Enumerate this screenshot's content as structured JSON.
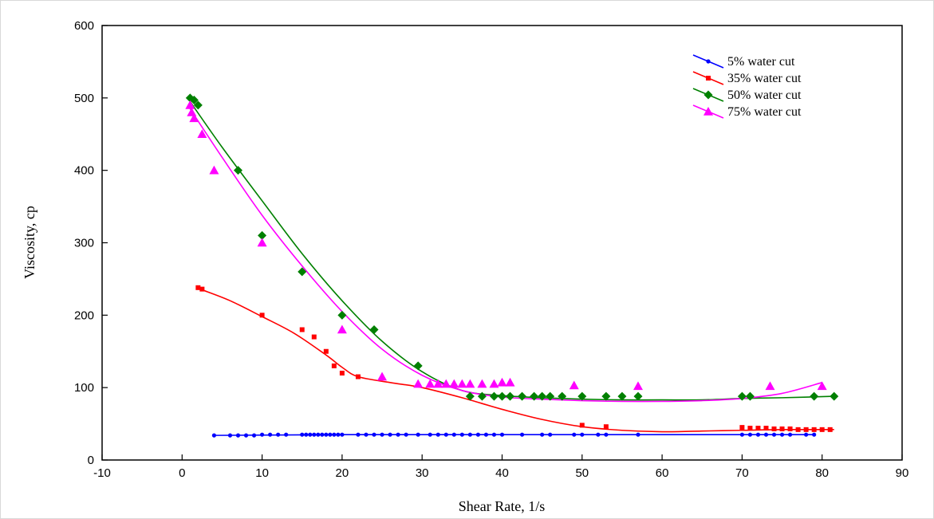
{
  "chart_data": {
    "type": "scatter",
    "xlabel": "Shear Rate, 1/s",
    "ylabel": "Viscosity, cp",
    "xlim": [
      -10,
      90
    ],
    "ylim": [
      0,
      600
    ],
    "x_ticks": [
      "-10",
      "0",
      "10",
      "20",
      "30",
      "40",
      "50",
      "60",
      "70",
      "80",
      "90"
    ],
    "y_ticks": [
      "0",
      "100",
      "200",
      "300",
      "400",
      "500",
      "600"
    ],
    "grid": false,
    "legend_position": "top-right",
    "series": [
      {
        "name": "5% water cut",
        "color": "#0000ff",
        "marker": "circle",
        "points": [
          [
            4,
            34
          ],
          [
            6,
            34
          ],
          [
            7,
            34
          ],
          [
            8,
            34
          ],
          [
            9,
            34
          ],
          [
            10,
            35
          ],
          [
            11,
            35
          ],
          [
            12,
            35
          ],
          [
            13,
            35
          ],
          [
            15,
            35
          ],
          [
            15.5,
            35
          ],
          [
            16,
            35
          ],
          [
            16.5,
            35
          ],
          [
            17,
            35
          ],
          [
            17.5,
            35
          ],
          [
            18,
            35
          ],
          [
            18.5,
            35
          ],
          [
            19,
            35
          ],
          [
            19.5,
            35
          ],
          [
            20,
            35
          ],
          [
            22,
            35
          ],
          [
            23,
            35
          ],
          [
            24,
            35
          ],
          [
            25,
            35
          ],
          [
            26,
            35
          ],
          [
            27,
            35
          ],
          [
            28,
            35
          ],
          [
            29.5,
            35
          ],
          [
            31,
            35
          ],
          [
            32,
            35
          ],
          [
            33,
            35
          ],
          [
            34,
            35
          ],
          [
            35,
            35
          ],
          [
            36,
            35
          ],
          [
            37,
            35
          ],
          [
            38,
            35
          ],
          [
            39,
            35
          ],
          [
            40,
            35
          ],
          [
            42.5,
            35
          ],
          [
            45,
            35
          ],
          [
            46,
            35
          ],
          [
            49,
            35
          ],
          [
            50,
            35
          ],
          [
            52,
            35
          ],
          [
            53,
            35
          ],
          [
            57,
            35
          ],
          [
            70,
            35
          ],
          [
            71,
            35
          ],
          [
            72,
            35
          ],
          [
            73,
            35
          ],
          [
            74,
            35
          ],
          [
            75,
            35
          ],
          [
            76,
            35
          ],
          [
            78,
            35
          ],
          [
            79,
            35
          ]
        ],
        "fit": [
          [
            4,
            34
          ],
          [
            20,
            35
          ],
          [
            40,
            35
          ],
          [
            60,
            35
          ],
          [
            79,
            35
          ]
        ]
      },
      {
        "name": "35% water cut",
        "color": "#ff0000",
        "marker": "square",
        "points": [
          [
            2,
            238
          ],
          [
            2.5,
            236
          ],
          [
            10,
            200
          ],
          [
            15,
            180
          ],
          [
            16.5,
            170
          ],
          [
            18,
            150
          ],
          [
            19,
            130
          ],
          [
            20,
            120
          ],
          [
            22,
            115
          ],
          [
            50,
            48
          ],
          [
            53,
            46
          ],
          [
            70,
            45
          ],
          [
            71,
            44
          ],
          [
            72,
            44
          ],
          [
            73,
            44
          ],
          [
            74,
            43
          ],
          [
            75,
            43
          ],
          [
            76,
            43
          ],
          [
            77,
            42
          ],
          [
            78,
            42
          ],
          [
            79,
            42
          ],
          [
            80,
            42
          ],
          [
            81,
            42
          ]
        ],
        "fit": [
          [
            2.5,
            235
          ],
          [
            6,
            220
          ],
          [
            10,
            198
          ],
          [
            14,
            175
          ],
          [
            18,
            145
          ],
          [
            20,
            128
          ],
          [
            22,
            115
          ],
          [
            26,
            107
          ],
          [
            30,
            100
          ],
          [
            35,
            86
          ],
          [
            40,
            70
          ],
          [
            45,
            56
          ],
          [
            50,
            46
          ],
          [
            55,
            41
          ],
          [
            60,
            39
          ],
          [
            65,
            40
          ],
          [
            70,
            41
          ],
          [
            75,
            42
          ],
          [
            81.5,
            42
          ]
        ]
      },
      {
        "name": "50% water cut",
        "color": "#008000",
        "marker": "diamond",
        "points": [
          [
            1,
            500
          ],
          [
            1.5,
            497
          ],
          [
            2,
            490
          ],
          [
            7,
            400
          ],
          [
            10,
            310
          ],
          [
            15,
            260
          ],
          [
            20,
            200
          ],
          [
            24,
            180
          ],
          [
            29.5,
            130
          ],
          [
            36,
            88
          ],
          [
            37.5,
            88
          ],
          [
            39,
            88
          ],
          [
            40,
            88
          ],
          [
            41,
            88
          ],
          [
            42.5,
            88
          ],
          [
            44,
            88
          ],
          [
            45,
            88
          ],
          [
            46,
            88
          ],
          [
            47.5,
            88
          ],
          [
            50,
            88
          ],
          [
            53,
            88
          ],
          [
            55,
            88
          ],
          [
            57,
            88
          ],
          [
            70,
            88
          ],
          [
            71,
            88
          ],
          [
            79,
            88
          ],
          [
            81.5,
            88
          ]
        ],
        "fit": [
          [
            1,
            495
          ],
          [
            5,
            432
          ],
          [
            10,
            358
          ],
          [
            15,
            285
          ],
          [
            20,
            220
          ],
          [
            25,
            164
          ],
          [
            30,
            122
          ],
          [
            35,
            96
          ],
          [
            40,
            89
          ],
          [
            45,
            86
          ],
          [
            50,
            84
          ],
          [
            55,
            83
          ],
          [
            60,
            83
          ],
          [
            65,
            83
          ],
          [
            70,
            85
          ],
          [
            75,
            86
          ],
          [
            81.5,
            88
          ]
        ]
      },
      {
        "name": "75% water cut",
        "color": "#ff00ff",
        "marker": "triangle",
        "points": [
          [
            1,
            490
          ],
          [
            1.2,
            480
          ],
          [
            1.5,
            472
          ],
          [
            2.5,
            450
          ],
          [
            4,
            400
          ],
          [
            10,
            300
          ],
          [
            20,
            180
          ],
          [
            25,
            115
          ],
          [
            29.5,
            105
          ],
          [
            31,
            105
          ],
          [
            32,
            105
          ],
          [
            33,
            105
          ],
          [
            34,
            105
          ],
          [
            35,
            105
          ],
          [
            36,
            105
          ],
          [
            37.5,
            105
          ],
          [
            39,
            105
          ],
          [
            40,
            107
          ],
          [
            41,
            107
          ],
          [
            49,
            103
          ],
          [
            57,
            102
          ],
          [
            73.5,
            102
          ],
          [
            80,
            102
          ]
        ],
        "fit": [
          [
            1,
            485
          ],
          [
            5,
            418
          ],
          [
            10,
            338
          ],
          [
            15,
            268
          ],
          [
            20,
            205
          ],
          [
            25,
            153
          ],
          [
            30,
            117
          ],
          [
            35,
            96
          ],
          [
            40,
            87
          ],
          [
            45,
            84
          ],
          [
            50,
            82
          ],
          [
            55,
            81
          ],
          [
            60,
            81
          ],
          [
            65,
            82
          ],
          [
            70,
            85
          ],
          [
            75,
            92
          ],
          [
            80,
            107
          ]
        ]
      }
    ]
  }
}
